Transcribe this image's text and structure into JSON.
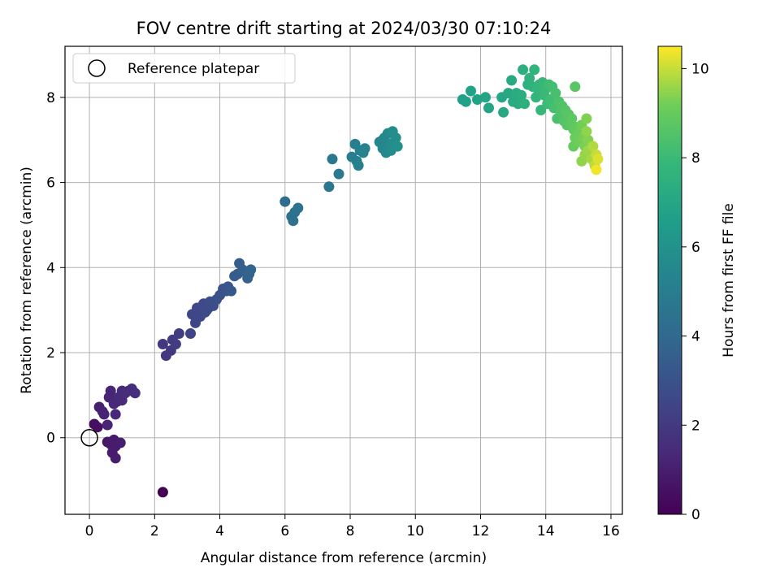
{
  "chart_data": {
    "type": "scatter",
    "title": "FOV centre drift starting at 2024/03/30 07:10:24",
    "xlabel": "Angular distance from reference (arcmin)",
    "ylabel": "Rotation from reference (arcmin)",
    "xlim": [
      -0.75,
      16.35
    ],
    "ylim": [
      -1.8,
      9.2
    ],
    "xticks": [
      0,
      2,
      4,
      6,
      8,
      10,
      12,
      14,
      16
    ],
    "yticks": [
      0,
      2,
      4,
      6,
      8
    ],
    "grid": true,
    "legend": {
      "position": "top-left",
      "entries": [
        "Reference platepar"
      ]
    },
    "reference_point": {
      "x": 0,
      "y": 0
    },
    "colorbar": {
      "label": "Hours from first FF file",
      "range": [
        0,
        10.5
      ],
      "ticks": [
        0,
        2,
        4,
        6,
        8,
        10
      ],
      "colormap": "viridis"
    },
    "points": [
      [
        2.25,
        -1.28,
        0.0
      ],
      [
        0.15,
        0.32,
        0.4
      ],
      [
        0.25,
        0.25,
        0.5
      ],
      [
        0.55,
        -0.1,
        0.7
      ],
      [
        0.65,
        -0.15,
        0.8
      ],
      [
        0.75,
        -0.05,
        0.85
      ],
      [
        0.8,
        -0.2,
        0.9
      ],
      [
        0.95,
        -0.12,
        0.95
      ],
      [
        0.7,
        -0.35,
        0.9
      ],
      [
        0.8,
        -0.48,
        0.95
      ],
      [
        0.3,
        0.72,
        1.0
      ],
      [
        0.4,
        0.62,
        1.1
      ],
      [
        0.45,
        0.55,
        1.15
      ],
      [
        0.55,
        0.3,
        1.2
      ],
      [
        0.6,
        0.95,
        1.2
      ],
      [
        0.65,
        1.1,
        1.25
      ],
      [
        0.75,
        0.8,
        1.3
      ],
      [
        0.8,
        0.55,
        1.3
      ],
      [
        0.85,
        0.85,
        1.35
      ],
      [
        0.9,
        0.95,
        1.4
      ],
      [
        1.0,
        1.1,
        1.4
      ],
      [
        1.0,
        0.88,
        1.45
      ],
      [
        1.1,
        1.05,
        1.5
      ],
      [
        1.2,
        1.1,
        1.5
      ],
      [
        1.3,
        1.15,
        1.55
      ],
      [
        1.4,
        1.05,
        1.6
      ],
      [
        2.25,
        2.2,
        1.9
      ],
      [
        2.35,
        1.93,
        1.95
      ],
      [
        2.5,
        2.05,
        2.0
      ],
      [
        2.55,
        2.3,
        2.05
      ],
      [
        2.65,
        2.2,
        2.1
      ],
      [
        2.75,
        2.45,
        2.15
      ],
      [
        3.1,
        2.45,
        2.4
      ],
      [
        3.15,
        2.9,
        2.45
      ],
      [
        3.25,
        2.7,
        2.5
      ],
      [
        3.3,
        3.05,
        2.55
      ],
      [
        3.4,
        2.85,
        2.6
      ],
      [
        3.5,
        3.15,
        2.65
      ],
      [
        3.55,
        2.95,
        2.7
      ],
      [
        3.65,
        3.05,
        2.75
      ],
      [
        3.7,
        3.2,
        2.8
      ],
      [
        3.8,
        3.1,
        2.85
      ],
      [
        3.9,
        3.25,
        2.9
      ],
      [
        4.0,
        3.35,
        2.95
      ],
      [
        4.1,
        3.5,
        3.0
      ],
      [
        4.2,
        3.45,
        3.1
      ],
      [
        4.25,
        3.55,
        3.15
      ],
      [
        4.35,
        3.45,
        3.2
      ],
      [
        3.6,
        3.0,
        2.7
      ],
      [
        3.25,
        2.85,
        2.55
      ],
      [
        4.45,
        3.8,
        3.4
      ],
      [
        4.55,
        3.85,
        3.45
      ],
      [
        4.6,
        4.1,
        3.5
      ],
      [
        4.7,
        3.95,
        3.55
      ],
      [
        4.8,
        3.9,
        3.6
      ],
      [
        4.85,
        3.75,
        3.65
      ],
      [
        4.9,
        3.85,
        3.7
      ],
      [
        4.95,
        3.95,
        3.75
      ],
      [
        6.0,
        5.55,
        4.2
      ],
      [
        6.2,
        5.2,
        4.3
      ],
      [
        6.25,
        5.1,
        4.35
      ],
      [
        6.3,
        5.3,
        4.4
      ],
      [
        6.4,
        5.4,
        4.45
      ],
      [
        7.35,
        5.9,
        4.7
      ],
      [
        7.45,
        6.55,
        4.75
      ],
      [
        7.65,
        6.2,
        4.8
      ],
      [
        8.05,
        6.6,
        5.0
      ],
      [
        8.15,
        6.9,
        5.05
      ],
      [
        8.2,
        6.5,
        5.1
      ],
      [
        8.25,
        6.4,
        5.15
      ],
      [
        8.3,
        6.75,
        5.2
      ],
      [
        8.4,
        6.7,
        5.25
      ],
      [
        8.45,
        6.8,
        5.3
      ],
      [
        8.9,
        6.95,
        5.4
      ],
      [
        9.0,
        6.8,
        5.45
      ],
      [
        9.05,
        7.05,
        5.5
      ],
      [
        9.1,
        6.7,
        5.55
      ],
      [
        9.15,
        7.15,
        5.6
      ],
      [
        9.2,
        6.9,
        5.65
      ],
      [
        9.25,
        6.75,
        5.7
      ],
      [
        9.3,
        7.2,
        5.75
      ],
      [
        9.35,
        6.95,
        5.8
      ],
      [
        9.4,
        7.05,
        5.85
      ],
      [
        9.45,
        6.85,
        5.9
      ],
      [
        9.0,
        7.0,
        5.5
      ],
      [
        11.45,
        7.95,
        6.6
      ],
      [
        11.55,
        7.9,
        6.7
      ],
      [
        11.7,
        8.15,
        6.75
      ],
      [
        11.9,
        7.95,
        6.8
      ],
      [
        12.15,
        8.0,
        6.85
      ],
      [
        12.25,
        7.75,
        6.9
      ],
      [
        12.65,
        8.0,
        7.0
      ],
      [
        12.7,
        7.65,
        7.05
      ],
      [
        12.85,
        8.1,
        7.1
      ],
      [
        12.95,
        8.4,
        7.15
      ],
      [
        13.0,
        7.9,
        7.2
      ],
      [
        13.1,
        8.1,
        7.25
      ],
      [
        13.15,
        7.85,
        7.3
      ],
      [
        13.25,
        8.05,
        7.35
      ],
      [
        13.3,
        8.65,
        7.4
      ],
      [
        13.35,
        7.85,
        7.45
      ],
      [
        13.45,
        8.3,
        7.5
      ],
      [
        13.5,
        8.45,
        7.55
      ],
      [
        13.6,
        8.25,
        7.6
      ],
      [
        13.65,
        8.65,
        7.65
      ],
      [
        13.7,
        8.0,
        7.7
      ],
      [
        13.75,
        8.2,
        7.75
      ],
      [
        13.8,
        8.3,
        7.8
      ],
      [
        13.85,
        7.7,
        7.85
      ],
      [
        13.9,
        8.35,
        7.9
      ],
      [
        13.95,
        8.05,
        7.95
      ],
      [
        14.0,
        8.2,
        8.0
      ],
      [
        14.05,
        7.85,
        8.05
      ],
      [
        14.1,
        8.3,
        8.1
      ],
      [
        14.15,
        7.95,
        8.15
      ],
      [
        14.2,
        8.25,
        8.2
      ],
      [
        14.25,
        7.75,
        8.25
      ],
      [
        14.3,
        8.1,
        8.3
      ],
      [
        14.35,
        7.5,
        8.35
      ],
      [
        14.4,
        7.9,
        8.4
      ],
      [
        14.45,
        7.65,
        8.45
      ],
      [
        14.5,
        7.8,
        8.5
      ],
      [
        14.55,
        7.45,
        8.55
      ],
      [
        14.6,
        7.7,
        8.6
      ],
      [
        14.65,
        7.35,
        8.65
      ],
      [
        14.7,
        7.6,
        8.7
      ],
      [
        14.75,
        7.4,
        8.75
      ],
      [
        14.8,
        7.5,
        8.8
      ],
      [
        14.85,
        7.25,
        8.85
      ],
      [
        14.9,
        8.25,
        8.7
      ],
      [
        14.95,
        7.3,
        8.9
      ],
      [
        14.85,
        6.85,
        9.0
      ],
      [
        14.9,
        7.05,
        9.05
      ],
      [
        15.0,
        7.15,
        9.1
      ],
      [
        15.05,
        6.95,
        9.15
      ],
      [
        15.1,
        7.35,
        9.2
      ],
      [
        15.15,
        7.05,
        9.25
      ],
      [
        15.2,
        6.85,
        9.3
      ],
      [
        15.25,
        7.5,
        9.35
      ],
      [
        15.3,
        7.0,
        9.4
      ],
      [
        15.35,
        6.7,
        9.45
      ],
      [
        15.1,
        6.5,
        9.5
      ],
      [
        15.2,
        6.65,
        9.55
      ],
      [
        15.3,
        6.75,
        9.6
      ],
      [
        15.4,
        6.55,
        9.7
      ],
      [
        15.45,
        6.85,
        9.8
      ],
      [
        15.5,
        6.4,
        9.9
      ],
      [
        15.55,
        6.65,
        10.0
      ],
      [
        15.6,
        6.55,
        10.2
      ],
      [
        15.55,
        6.3,
        10.4
      ],
      [
        15.25,
        7.2,
        9.5
      ]
    ]
  }
}
